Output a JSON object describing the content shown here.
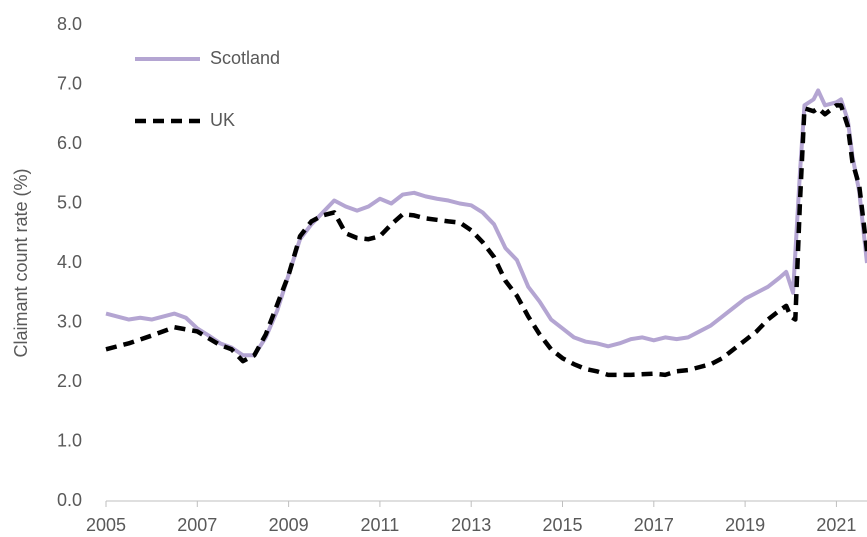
{
  "chart_data": {
    "type": "line",
    "y_label": "Claimant count rate (%)",
    "xlim": [
      2005,
      2021.67
    ],
    "xticks": [
      2005,
      2007,
      2009,
      2011,
      2013,
      2015,
      2017,
      2019,
      2021
    ],
    "ylim": [
      0,
      8
    ],
    "yticks": [
      {
        "value": 0,
        "label": "0.0"
      },
      {
        "value": 1,
        "label": "1.0"
      },
      {
        "value": 2,
        "label": "2.0"
      },
      {
        "value": 3,
        "label": "3.0"
      },
      {
        "value": 4,
        "label": "4.0"
      },
      {
        "value": 5,
        "label": "5.0"
      },
      {
        "value": 6,
        "label": "6.0"
      },
      {
        "value": 7,
        "label": "7.0"
      },
      {
        "value": 8,
        "label": "8.0"
      }
    ],
    "grid": false,
    "legend": "top-left",
    "series": [
      {
        "name": "Scotland",
        "color": "#b4a5d2",
        "style": "solid",
        "x": [
          2005,
          2005.25,
          2005.5,
          2005.75,
          2006,
          2006.25,
          2006.5,
          2006.75,
          2007,
          2007.25,
          2007.5,
          2007.75,
          2008,
          2008.25,
          2008.5,
          2008.75,
          2009,
          2009.25,
          2009.5,
          2009.75,
          2010,
          2010.25,
          2010.5,
          2010.75,
          2011,
          2011.25,
          2011.5,
          2011.75,
          2012,
          2012.25,
          2012.5,
          2012.75,
          2013,
          2013.25,
          2013.5,
          2013.75,
          2014,
          2014.25,
          2014.5,
          2014.75,
          2015,
          2015.25,
          2015.5,
          2015.75,
          2016,
          2016.25,
          2016.5,
          2016.75,
          2017,
          2017.25,
          2017.5,
          2017.75,
          2018,
          2018.25,
          2018.5,
          2018.75,
          2019,
          2019.25,
          2019.5,
          2019.75,
          2019.9,
          2020.05,
          2020.2,
          2020.3,
          2020.5,
          2020.6,
          2020.75,
          2021,
          2021.1,
          2021.25,
          2021.35,
          2021.5,
          2021.67
        ],
        "values": [
          3.15,
          3.1,
          3.05,
          3.08,
          3.05,
          3.1,
          3.15,
          3.08,
          2.9,
          2.78,
          2.65,
          2.58,
          2.45,
          2.45,
          2.75,
          3.2,
          3.8,
          4.4,
          4.65,
          4.85,
          5.05,
          4.95,
          4.88,
          4.95,
          5.08,
          5.0,
          5.15,
          5.18,
          5.12,
          5.08,
          5.05,
          5.0,
          4.97,
          4.85,
          4.65,
          4.25,
          4.05,
          3.6,
          3.35,
          3.05,
          2.9,
          2.75,
          2.68,
          2.65,
          2.6,
          2.65,
          2.72,
          2.75,
          2.7,
          2.75,
          2.72,
          2.75,
          2.85,
          2.95,
          3.1,
          3.25,
          3.4,
          3.5,
          3.6,
          3.75,
          3.85,
          3.5,
          5.5,
          6.65,
          6.75,
          6.9,
          6.65,
          6.7,
          6.75,
          6.4,
          5.8,
          5.2,
          4.0
        ]
      },
      {
        "name": "UK",
        "color": "#000000",
        "style": "dashed",
        "x": [
          2005,
          2005.5,
          2006,
          2006.5,
          2007,
          2007.5,
          2007.75,
          2008,
          2008.25,
          2008.5,
          2008.75,
          2009,
          2009.25,
          2009.5,
          2009.75,
          2010,
          2010.25,
          2010.5,
          2010.75,
          2011,
          2011.25,
          2011.5,
          2011.75,
          2012,
          2012.5,
          2012.75,
          2013,
          2013.25,
          2013.5,
          2013.75,
          2014,
          2014.25,
          2014.5,
          2014.75,
          2015,
          2015.25,
          2015.5,
          2015.75,
          2016,
          2016.5,
          2017,
          2017.25,
          2017.5,
          2017.75,
          2018,
          2018.25,
          2018.5,
          2018.75,
          2019,
          2019.25,
          2019.5,
          2019.75,
          2019.9,
          2020,
          2020.1,
          2020.2,
          2020.3,
          2020.5,
          2020.6,
          2020.75,
          2021,
          2021.1,
          2021.25,
          2021.35,
          2021.5,
          2021.67
        ],
        "values": [
          2.55,
          2.65,
          2.78,
          2.92,
          2.85,
          2.62,
          2.55,
          2.35,
          2.45,
          2.8,
          3.3,
          3.8,
          4.45,
          4.7,
          4.8,
          4.85,
          4.5,
          4.42,
          4.4,
          4.45,
          4.65,
          4.82,
          4.8,
          4.75,
          4.7,
          4.68,
          4.55,
          4.35,
          4.1,
          3.7,
          3.45,
          3.1,
          2.8,
          2.55,
          2.4,
          2.3,
          2.22,
          2.18,
          2.12,
          2.12,
          2.14,
          2.12,
          2.18,
          2.2,
          2.25,
          2.3,
          2.4,
          2.55,
          2.7,
          2.85,
          3.05,
          3.2,
          3.28,
          3.1,
          3.05,
          5.0,
          6.6,
          6.55,
          6.6,
          6.5,
          6.65,
          6.65,
          6.3,
          5.7,
          5.3,
          4.2
        ]
      }
    ]
  }
}
